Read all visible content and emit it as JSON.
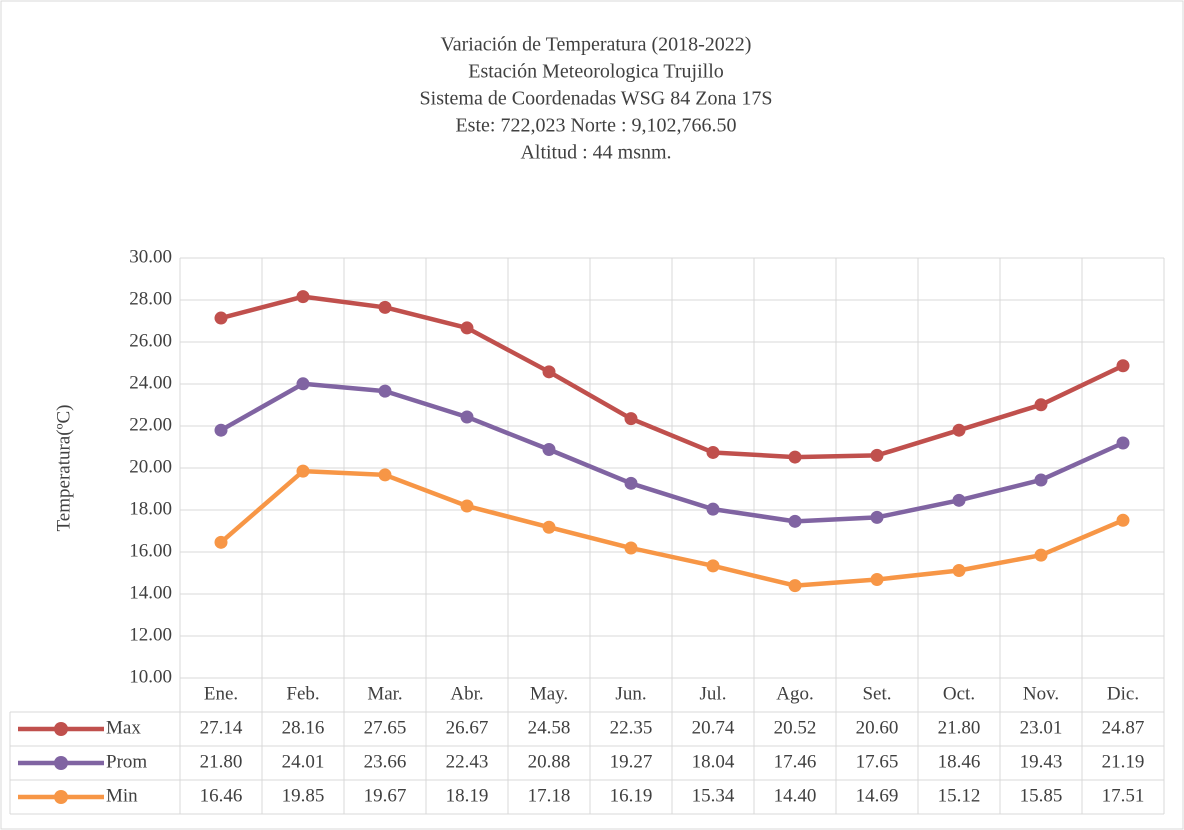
{
  "chart_data": {
    "type": "line",
    "title": [
      "Variación de Temperatura (2018-2022)",
      "Estación Meteorologica Trujillo",
      "Sistema de Coordenadas WSG 84 Zona 17S",
      "Este: 722,023  Norte : 9,102,766.50",
      "Altitud : 44 msnm."
    ],
    "y_label": "Temperatura(ºC)",
    "categories": [
      "Ene.",
      "Feb.",
      "Mar.",
      "Abr.",
      "May.",
      "Jun.",
      "Jul.",
      "Ago.",
      "Set.",
      "Oct.",
      "Nov.",
      "Dic."
    ],
    "series": [
      {
        "name": "Max",
        "color": "#c0504d",
        "values": [
          27.14,
          28.16,
          27.65,
          26.67,
          24.58,
          22.35,
          20.74,
          20.52,
          20.6,
          21.8,
          23.01,
          24.87
        ],
        "value_labels": [
          "27.14",
          "28.16",
          "27.65",
          "26.67",
          "24.58",
          "22.35",
          "20.74",
          "20.52",
          "20.60",
          "21.80",
          "23.01",
          "24.87"
        ]
      },
      {
        "name": "Prom",
        "color": "#8064a2",
        "values": [
          21.8,
          24.01,
          23.66,
          22.43,
          20.88,
          19.27,
          18.04,
          17.46,
          17.65,
          18.46,
          19.43,
          21.19
        ],
        "value_labels": [
          "21.80",
          "24.01",
          "23.66",
          "22.43",
          "20.88",
          "19.27",
          "18.04",
          "17.46",
          "17.65",
          "18.46",
          "19.43",
          "21.19"
        ]
      },
      {
        "name": "Min",
        "color": "#f79646",
        "values": [
          16.46,
          19.85,
          19.67,
          18.19,
          17.18,
          16.19,
          15.34,
          14.4,
          14.69,
          15.12,
          15.85,
          17.51
        ],
        "value_labels": [
          "16.46",
          "19.85",
          "19.67",
          "18.19",
          "17.18",
          "16.19",
          "15.34",
          "14.40",
          "14.69",
          "15.12",
          "15.85",
          "17.51"
        ]
      }
    ],
    "ylim": [
      10,
      30
    ],
    "yticks": [
      {
        "value": 10,
        "label": "10.00"
      },
      {
        "value": 12,
        "label": "12.00"
      },
      {
        "value": 14,
        "label": "14.00"
      },
      {
        "value": 16,
        "label": "16.00"
      },
      {
        "value": 18,
        "label": "18.00"
      },
      {
        "value": 20,
        "label": "20.00"
      },
      {
        "value": 22,
        "label": "22.00"
      },
      {
        "value": 24,
        "label": "24.00"
      },
      {
        "value": 26,
        "label": "26.00"
      },
      {
        "value": 28,
        "label": "28.00"
      },
      {
        "value": 30,
        "label": "30.00"
      }
    ],
    "grid": true
  }
}
